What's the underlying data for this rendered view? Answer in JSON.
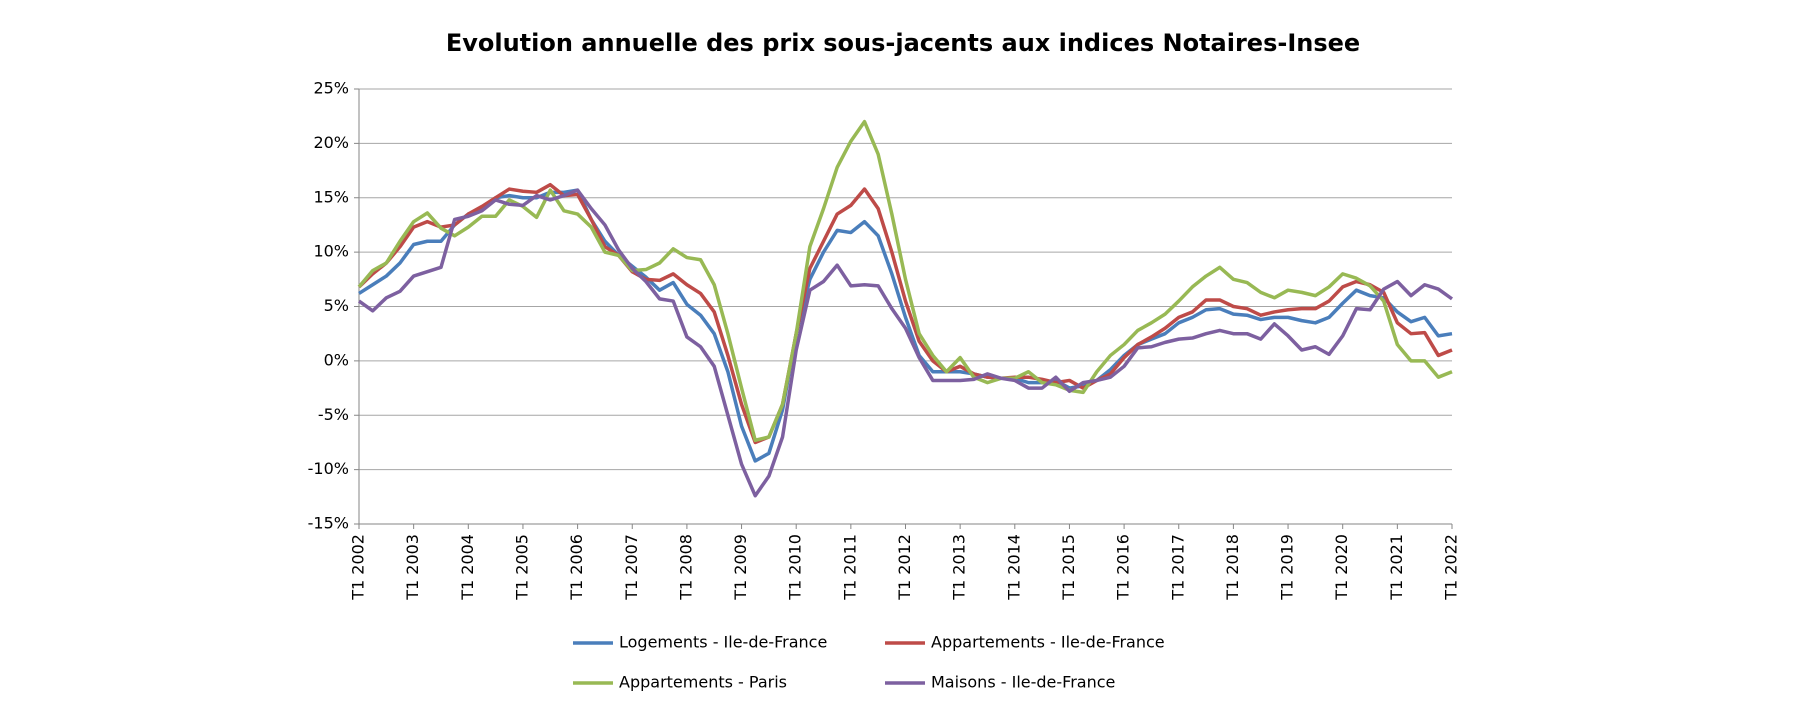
{
  "chart_data": {
    "type": "line",
    "title": "Evolution annuelle des prix sous-jacents aux indices Notaires-Insee",
    "categories": [
      "T1 2002",
      null,
      null,
      null,
      "T1 2003",
      null,
      null,
      null,
      "T1 2004",
      null,
      null,
      null,
      "T1 2005",
      null,
      null,
      null,
      "T1 2006",
      null,
      null,
      null,
      "T1 2007",
      null,
      null,
      null,
      "T1 2008",
      null,
      null,
      null,
      "T1 2009",
      null,
      null,
      null,
      "T1 2010",
      null,
      null,
      null,
      "T1 2011",
      null,
      null,
      null,
      "T1 2012",
      null,
      null,
      null,
      "T1 2013",
      null,
      null,
      null,
      "T1 2014",
      null,
      null,
      null,
      "T1 2015",
      null,
      null,
      null,
      "T1 2016",
      null,
      null,
      null,
      "T1 2017",
      null,
      null,
      null,
      "T1 2018",
      null,
      null,
      null,
      "T1 2019",
      null,
      null,
      null,
      "T1 2020",
      null,
      null,
      null,
      "T1 2021",
      null,
      null,
      null,
      "T1 2022"
    ],
    "series": [
      {
        "name": "Logements - Ile-de-France",
        "color": "#4a7ebb",
        "values": [
          6.2,
          7.0,
          7.8,
          9.0,
          10.7,
          11.0,
          11.0,
          12.5,
          13.5,
          14.0,
          15.0,
          15.2,
          15.0,
          15.0,
          15.5,
          15.5,
          15.7,
          13.0,
          11.0,
          9.7,
          8.7,
          7.7,
          6.5,
          7.2,
          5.2,
          4.2,
          2.5,
          -1.0,
          -6.0,
          -9.2,
          -8.5,
          -4.5,
          2.5,
          7.5,
          10.0,
          12.0,
          11.8,
          12.8,
          11.5,
          8.0,
          4.0,
          0.5,
          -1.0,
          -1.0,
          -1.0,
          -1.2,
          -1.5,
          -1.6,
          -1.6,
          -2.0,
          -2.0,
          -1.8,
          -2.5,
          -2.3,
          -1.8,
          -0.8,
          0.5,
          1.5,
          2.0,
          2.5,
          3.5,
          4.0,
          4.7,
          4.8,
          4.3,
          4.2,
          3.8,
          4.0,
          4.0,
          3.7,
          3.5,
          4.0,
          5.3,
          6.5,
          6.0,
          5.8,
          4.5,
          3.6,
          4.0,
          2.3,
          2.5
        ]
      },
      {
        "name": "Appartements - Ile-de-France",
        "color": "#be4b48",
        "values": [
          6.8,
          8.0,
          9.0,
          10.5,
          12.3,
          12.8,
          12.3,
          12.5,
          13.5,
          14.2,
          15.0,
          15.8,
          15.6,
          15.5,
          16.2,
          15.2,
          15.3,
          13.0,
          10.5,
          9.7,
          8.2,
          7.5,
          7.4,
          8.0,
          7.0,
          6.2,
          4.5,
          0.5,
          -4.0,
          -7.5,
          -7.0,
          -4.0,
          2.5,
          8.5,
          11.0,
          13.5,
          14.3,
          15.8,
          14.0,
          10.0,
          5.5,
          1.8,
          0,
          -1.0,
          -0.5,
          -1.2,
          -1.5,
          -1.6,
          -1.5,
          -1.5,
          -1.7,
          -2.0,
          -1.8,
          -2.5,
          -1.8,
          -1.2,
          0.3,
          1.5,
          2.2,
          3.0,
          4.0,
          4.5,
          5.6,
          5.6,
          5.0,
          4.8,
          4.2,
          4.5,
          4.7,
          4.8,
          4.8,
          5.5,
          6.8,
          7.3,
          7.0,
          6.3,
          3.5,
          2.5,
          2.6,
          0.5,
          1.0
        ]
      },
      {
        "name": "Appartements - Paris",
        "color": "#98b954",
        "values": [
          6.8,
          8.3,
          9.0,
          11.0,
          12.8,
          13.6,
          12.2,
          11.5,
          12.3,
          13.3,
          13.3,
          14.8,
          14.2,
          13.2,
          15.7,
          13.8,
          13.5,
          12.3,
          10.0,
          9.7,
          8.3,
          8.4,
          9.0,
          10.3,
          9.5,
          9.3,
          7.0,
          2.5,
          -2.5,
          -7.3,
          -7.0,
          -4.0,
          2.5,
          10.5,
          14.0,
          17.8,
          20.2,
          22.0,
          19.0,
          13.5,
          7.5,
          2.5,
          0.5,
          -1.0,
          0.3,
          -1.5,
          -2.0,
          -1.6,
          -1.6,
          -1.0,
          -2.0,
          -2.2,
          -2.7,
          -2.9,
          -1.0,
          0.5,
          1.5,
          2.8,
          3.5,
          4.3,
          5.5,
          6.8,
          7.8,
          8.6,
          7.5,
          7.2,
          6.3,
          5.8,
          6.5,
          6.3,
          6.0,
          6.8,
          8.0,
          7.6,
          6.9,
          5.5,
          1.5,
          0,
          0,
          -1.5,
          -1.0
        ]
      },
      {
        "name": "Maisons - Ile-de-France",
        "color": "#7d60a0",
        "values": [
          5.5,
          4.6,
          5.8,
          6.4,
          7.8,
          8.2,
          8.6,
          13.0,
          13.3,
          13.8,
          14.8,
          14.4,
          14.3,
          15.2,
          14.8,
          15.2,
          15.7,
          14.0,
          12.5,
          10.2,
          8.5,
          7.3,
          5.7,
          5.5,
          2.2,
          1.3,
          -0.5,
          -5.0,
          -9.5,
          -12.4,
          -10.6,
          -7.0,
          1.0,
          6.5,
          7.3,
          8.8,
          6.9,
          7.0,
          6.9,
          4.8,
          3.0,
          0.3,
          -1.8,
          -1.8,
          -1.8,
          -1.7,
          -1.2,
          -1.6,
          -1.8,
          -2.5,
          -2.5,
          -1.5,
          -2.8,
          -2.0,
          -1.8,
          -1.5,
          -0.5,
          1.2,
          1.3,
          1.7,
          2.0,
          2.1,
          2.5,
          2.8,
          2.5,
          2.5,
          2.0,
          3.4,
          2.3,
          1.0,
          1.3,
          0.6,
          2.3,
          4.8,
          4.7,
          6.6,
          7.3,
          6.0,
          7.0,
          6.6,
          5.7
        ]
      }
    ],
    "ylim": [
      -15,
      25
    ],
    "yticks": [
      {
        "value": -15,
        "label": "-15%"
      },
      {
        "value": -10,
        "label": "-10%"
      },
      {
        "value": -5,
        "label": "-5%"
      },
      {
        "value": 0,
        "label": "0%"
      },
      {
        "value": 5,
        "label": "5%"
      },
      {
        "value": 10,
        "label": "10%"
      },
      {
        "value": 15,
        "label": "15%"
      },
      {
        "value": 20,
        "label": "20%"
      },
      {
        "value": 25,
        "label": "25%"
      }
    ],
    "grid": true,
    "legend": "bottom"
  }
}
